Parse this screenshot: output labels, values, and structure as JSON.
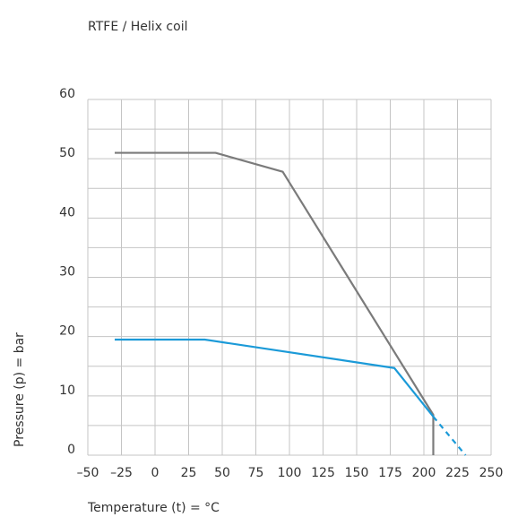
{
  "chart_data": {
    "type": "line",
    "title": "RTFE / Helix coil",
    "xlabel": "Temperature (t) = °C",
    "ylabel": "Pressure (p) = bar",
    "xlim": [
      -50,
      250
    ],
    "xticks": [
      {
        "value": -50,
        "label": "–50"
      },
      {
        "value": -25,
        "label": "–25"
      },
      0,
      25,
      50,
      75,
      100,
      125,
      150,
      175,
      200,
      225,
      250
    ],
    "ylim": [
      0,
      60
    ],
    "yticks": [
      0,
      10,
      20,
      30,
      40,
      50,
      60
    ],
    "yminor": [
      5,
      15,
      25,
      35,
      45,
      55
    ],
    "grid": true,
    "series": [
      {
        "color": "#7b7b7b",
        "x": [
          -30,
          45,
          95,
          207,
          207
        ],
        "values": [
          51,
          51,
          47.8,
          6.8,
          0
        ]
      },
      {
        "color": "#1b9ad8",
        "x": [
          -30,
          37,
          178,
          207
        ],
        "values": [
          19.5,
          19.5,
          14.7,
          6.5
        ]
      },
      {
        "color": "#1b9ad8",
        "dashed": true,
        "x": [
          207,
          231
        ],
        "values": [
          6.5,
          0
        ]
      }
    ]
  }
}
